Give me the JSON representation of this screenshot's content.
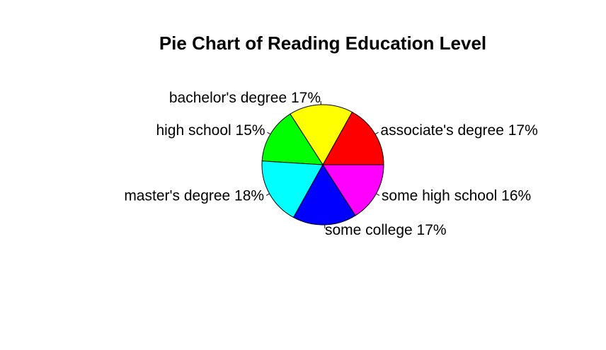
{
  "chart_data": {
    "type": "pie",
    "title": "Pie Chart of Reading Education Level",
    "start_angle_deg": 0,
    "direction": "counterclockwise",
    "slices": [
      {
        "label": "associate's degree 17%",
        "value": 17,
        "color": "#FF0000"
      },
      {
        "label": "bachelor's degree 17%",
        "value": 17,
        "color": "#FFFF00"
      },
      {
        "label": "high school 15%",
        "value": 15,
        "color": "#00FF00"
      },
      {
        "label": "master's degree 18%",
        "value": 18,
        "color": "#00FFFF"
      },
      {
        "label": "some college 17%",
        "value": 17,
        "color": "#0000FF"
      },
      {
        "label": "some high school 16%",
        "value": 16,
        "color": "#FF00FF"
      }
    ]
  }
}
